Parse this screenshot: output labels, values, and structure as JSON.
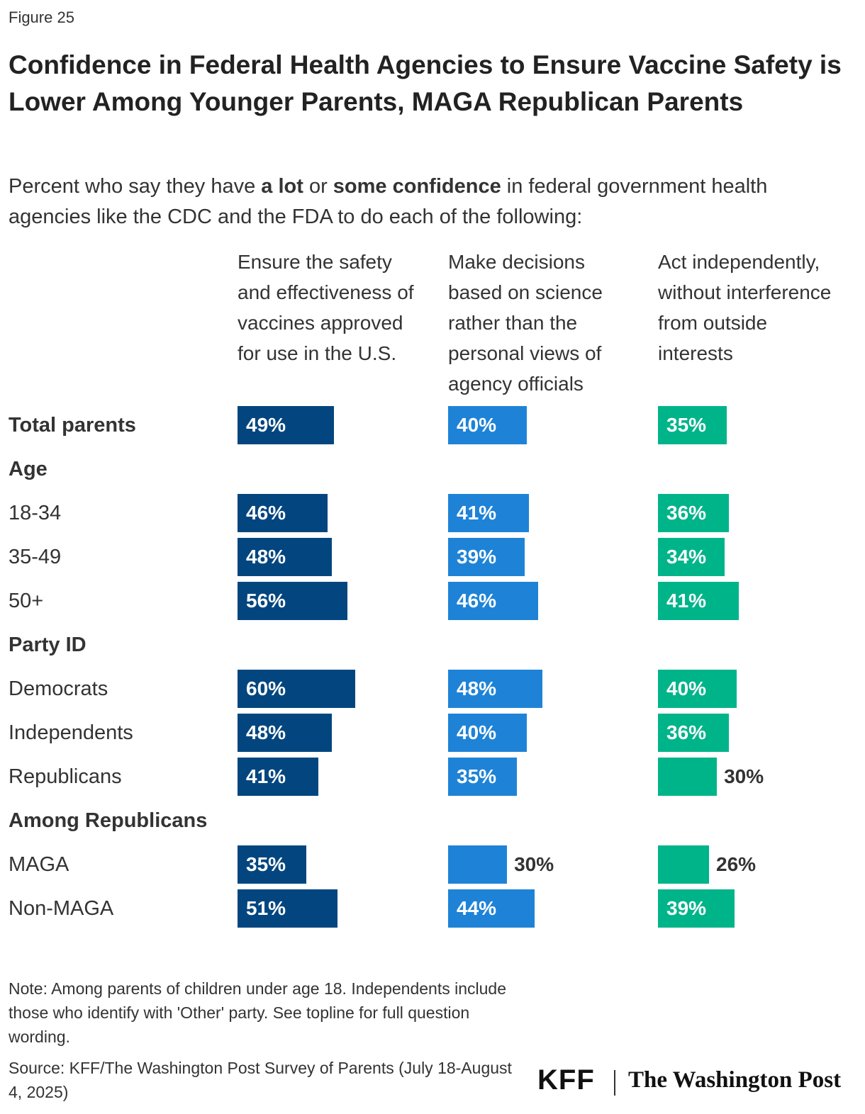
{
  "chart_data": {
    "type": "bar",
    "figure_label": "Figure 25",
    "title": "Confidence in Federal Health Agencies to Ensure Vaccine Safety is Lower Among Younger Parents, MAGA Republican Parents",
    "subtitle": [
      "Percent who say they have ",
      "a lot",
      " or ",
      "some confidence",
      " in federal government health agencies like the CDC and the FDA to do each of the following:"
    ],
    "subtitle_bold": [
      false,
      true,
      false,
      true,
      false
    ],
    "categories": [
      "Total parents",
      "Age",
      "18-34",
      "35-49",
      "50+",
      "Party ID",
      "Democrats",
      "Independents",
      "Republicans",
      "Among Republicans",
      "MAGA",
      "Non-MAGA"
    ],
    "category_bold": [
      true,
      true,
      false,
      false,
      false,
      true,
      false,
      false,
      false,
      true,
      false,
      false
    ],
    "xlim": [
      0,
      100
    ],
    "series": [
      {
        "name": "Ensure the safety and effectiveness of vaccines approved for use in the U.S.",
        "color": "#03467f",
        "values": [
          49,
          null,
          46,
          48,
          56,
          null,
          60,
          48,
          41,
          null,
          35,
          51
        ],
        "value_labels": [
          "49%",
          null,
          "46%",
          "48%",
          "56%",
          null,
          "60%",
          "48%",
          "41%",
          null,
          "35%",
          "51%"
        ]
      },
      {
        "name": "Make decisions based on science rather than the personal views of agency officials",
        "color": "#1e83d7",
        "values": [
          40,
          null,
          41,
          39,
          46,
          null,
          48,
          40,
          35,
          null,
          30,
          44
        ],
        "value_labels": [
          "40%",
          null,
          "41%",
          "39%",
          "46%",
          null,
          "48%",
          "40%",
          "35%",
          null,
          "30%",
          "44%"
        ]
      },
      {
        "name": "Act independently, without interference from outside interests",
        "color": "#00b48a",
        "values": [
          35,
          null,
          36,
          34,
          41,
          null,
          40,
          36,
          30,
          null,
          26,
          39
        ],
        "value_labels": [
          "35%",
          null,
          "36%",
          "34%",
          "41%",
          null,
          "40%",
          "36%",
          "30%",
          null,
          "26%",
          "39%"
        ]
      }
    ],
    "note": "Note: Among parents of children under age 18. Independents include those who identify with 'Other' party. See topline for full question wording.",
    "source": "Source: KFF/The Washington Post Survey of Parents (July 18-August 4, 2025)",
    "logos": [
      "KFF",
      "The Washington Post"
    ]
  }
}
